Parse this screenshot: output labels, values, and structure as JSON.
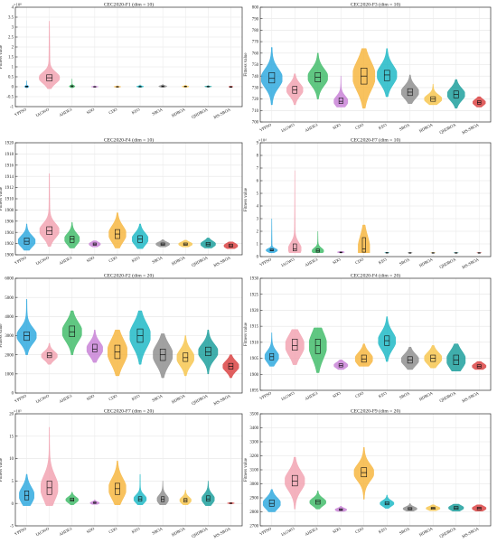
{
  "figure": {
    "ylabel": "Fitness value",
    "algorithms": [
      "YPPSO",
      "IAGWO",
      "AHDE3",
      "SDO",
      "CDO",
      "KEO",
      "SBOA",
      "HDBOA",
      "QHDBOA",
      "MS-SBOA"
    ],
    "colors": [
      "#2aa7de",
      "#f2a1b0",
      "#3dbb67",
      "#c77fd6",
      "#f6b43b",
      "#19b7c4",
      "#8c8c8c",
      "#f6c44a",
      "#169c9a",
      "#d93d3d"
    ]
  },
  "chart_data": [
    {
      "type": "violin",
      "title": "CEC2020-F1 (dim = 10)",
      "exponent_label": "×10⁸",
      "ylim": [
        -1,
        4
      ],
      "yticks": [
        -1,
        -0.5,
        0,
        0.5,
        1,
        1.5,
        2,
        2.5,
        3,
        3.5,
        4
      ],
      "ytick_labels": [
        "-1",
        "-0.5",
        "0",
        "0.5",
        "1",
        "1.5",
        "2",
        "2.5",
        "3",
        "3.5",
        "4"
      ],
      "series": [
        {
          "median": 0.01,
          "q1": -0.01,
          "q3": 0.03,
          "min": -0.05,
          "max": 0.3,
          "width": 0.2
        },
        {
          "median": 0.45,
          "q1": 0.3,
          "q3": 0.6,
          "min": -0.1,
          "max": 3.3,
          "width": 0.9
        },
        {
          "median": 0.02,
          "q1": 0.0,
          "q3": 0.05,
          "min": -0.05,
          "max": 0.4,
          "width": 0.25
        },
        {
          "median": 0.0,
          "q1": -0.01,
          "q3": 0.01,
          "min": -0.03,
          "max": 0.05,
          "width": 0.3
        },
        {
          "median": 0.0,
          "q1": -0.01,
          "q3": 0.01,
          "min": -0.03,
          "max": 0.05,
          "width": 0.3
        },
        {
          "median": 0.01,
          "q1": -0.01,
          "q3": 0.02,
          "min": -0.03,
          "max": 0.1,
          "width": 0.3
        },
        {
          "median": 0.02,
          "q1": 0.0,
          "q3": 0.04,
          "min": -0.03,
          "max": 0.12,
          "width": 0.35
        },
        {
          "median": 0.01,
          "q1": 0.0,
          "q3": 0.03,
          "min": -0.03,
          "max": 0.08,
          "width": 0.3
        },
        {
          "median": 0.01,
          "q1": 0.0,
          "q3": 0.02,
          "min": -0.03,
          "max": 0.06,
          "width": 0.3
        },
        {
          "median": 0.0,
          "q1": 0.0,
          "q3": 0.0,
          "min": 0.0,
          "max": 0.0,
          "width": 0.15
        }
      ]
    },
    {
      "type": "violin",
      "title": "CEC2020-F3 (dim = 10)",
      "exponent_label": "",
      "ylim": [
        700,
        800
      ],
      "yticks": [
        700,
        710,
        720,
        730,
        740,
        750,
        760,
        770,
        780,
        790,
        800
      ],
      "ytick_labels": [
        "700",
        "710",
        "720",
        "730",
        "740",
        "750",
        "760",
        "770",
        "780",
        "790",
        "800"
      ],
      "series": [
        {
          "median": 738,
          "q1": 734,
          "q3": 743,
          "min": 715,
          "max": 765,
          "width": 0.9
        },
        {
          "median": 728,
          "q1": 725,
          "q3": 731,
          "min": 715,
          "max": 742,
          "width": 0.7
        },
        {
          "median": 739,
          "q1": 735,
          "q3": 743,
          "min": 720,
          "max": 760,
          "width": 0.85
        },
        {
          "median": 718,
          "q1": 716,
          "q3": 721,
          "min": 713,
          "max": 740,
          "width": 0.6
        },
        {
          "median": 740,
          "q1": 733,
          "q3": 747,
          "min": 712,
          "max": 764,
          "width": 0.95
        },
        {
          "median": 741,
          "q1": 736,
          "q3": 745,
          "min": 722,
          "max": 764,
          "width": 0.85
        },
        {
          "median": 726,
          "q1": 723,
          "q3": 729,
          "min": 716,
          "max": 741,
          "width": 0.75
        },
        {
          "median": 720,
          "q1": 718,
          "q3": 722,
          "min": 715,
          "max": 733,
          "width": 0.75
        },
        {
          "median": 724,
          "q1": 721,
          "q3": 727,
          "min": 712,
          "max": 737,
          "width": 0.75
        },
        {
          "median": 717,
          "q1": 715.5,
          "q3": 718.5,
          "min": 713,
          "max": 722,
          "width": 0.55
        }
      ]
    },
    {
      "type": "violin",
      "title": "CEC2020-F4 (dim = 10)",
      "exponent_label": "",
      "ylim": [
        1900,
        1920
      ],
      "yticks": [
        1900,
        1902,
        1904,
        1906,
        1908,
        1910,
        1912,
        1914,
        1916,
        1918,
        1920
      ],
      "ytick_labels": [
        "1900",
        "1902",
        "1904",
        "1906",
        "1908",
        "1910",
        "1912",
        "1914",
        "1916",
        "1918",
        "1920"
      ],
      "series": [
        {
          "median": 1902.4,
          "q1": 1901.9,
          "q3": 1903.0,
          "min": 1900.8,
          "max": 1905.5,
          "width": 0.75
        },
        {
          "median": 1904.3,
          "q1": 1903.6,
          "q3": 1905.0,
          "min": 1901.5,
          "max": 1914.5,
          "width": 0.85
        },
        {
          "median": 1902.8,
          "q1": 1902.2,
          "q3": 1903.3,
          "min": 1901.2,
          "max": 1905.8,
          "width": 0.65
        },
        {
          "median": 1901.9,
          "q1": 1901.7,
          "q3": 1902.1,
          "min": 1901.4,
          "max": 1902.5,
          "width": 0.5
        },
        {
          "median": 1903.7,
          "q1": 1902.9,
          "q3": 1904.5,
          "min": 1901.2,
          "max": 1907.5,
          "width": 0.75
        },
        {
          "median": 1902.8,
          "q1": 1902.2,
          "q3": 1903.4,
          "min": 1901.1,
          "max": 1905.5,
          "width": 0.7
        },
        {
          "median": 1901.9,
          "q1": 1901.7,
          "q3": 1902.1,
          "min": 1901.4,
          "max": 1902.7,
          "width": 0.6
        },
        {
          "median": 1901.9,
          "q1": 1901.7,
          "q3": 1902.1,
          "min": 1901.4,
          "max": 1902.6,
          "width": 0.6
        },
        {
          "median": 1901.9,
          "q1": 1901.6,
          "q3": 1902.2,
          "min": 1901.2,
          "max": 1903.0,
          "width": 0.65
        },
        {
          "median": 1901.6,
          "q1": 1901.4,
          "q3": 1901.9,
          "min": 1901.1,
          "max": 1902.3,
          "width": 0.6
        }
      ]
    },
    {
      "type": "violin",
      "title": "CEC2020-F7 (dim = 10)",
      "exponent_label": "×10⁴",
      "ylim": [
        0,
        9
      ],
      "yticks": [
        0,
        1,
        2,
        3,
        4,
        5,
        6,
        7,
        8,
        9
      ],
      "ytick_labels": [
        "0",
        "1",
        "2",
        "3",
        "4",
        "5",
        "6",
        "7",
        "8",
        "9"
      ],
      "series": [
        {
          "median": 0.5,
          "q1": 0.45,
          "q3": 0.6,
          "min": 0.3,
          "max": 3.0,
          "width": 0.5
        },
        {
          "median": 0.6,
          "q1": 0.45,
          "q3": 1.0,
          "min": 0.3,
          "max": 6.8,
          "width": 0.55
        },
        {
          "median": 0.45,
          "q1": 0.35,
          "q3": 0.6,
          "min": 0.3,
          "max": 2.0,
          "width": 0.5
        },
        {
          "median": 0.35,
          "q1": 0.3,
          "q3": 0.35,
          "min": 0.3,
          "max": 0.4,
          "width": 0.3
        },
        {
          "median": 0.6,
          "q1": 0.35,
          "q3": 1.5,
          "min": 0.3,
          "max": 2.5,
          "width": 0.5
        },
        {
          "median": 0.3,
          "q1": 0.3,
          "q3": 0.32,
          "min": 0.3,
          "max": 0.35,
          "width": 0.2
        },
        {
          "median": 0.3,
          "q1": 0.3,
          "q3": 0.31,
          "min": 0.3,
          "max": 0.32,
          "width": 0.2
        },
        {
          "median": 0.3,
          "q1": 0.3,
          "q3": 0.31,
          "min": 0.3,
          "max": 0.32,
          "width": 0.2
        },
        {
          "median": 0.3,
          "q1": 0.3,
          "q3": 0.31,
          "min": 0.3,
          "max": 0.32,
          "width": 0.2
        },
        {
          "median": 0.3,
          "q1": 0.3,
          "q3": 0.31,
          "min": 0.3,
          "max": 0.32,
          "width": 0.2
        }
      ]
    },
    {
      "type": "violin",
      "title": "CEC2020-F2 (dim = 20)",
      "exponent_label": "",
      "ylim": [
        0,
        6000
      ],
      "yticks": [
        0,
        1000,
        2000,
        3000,
        4000,
        5000,
        6000
      ],
      "ytick_labels": [
        "0",
        "1000",
        "2000",
        "3000",
        "4000",
        "5000",
        "6000"
      ],
      "series": [
        {
          "median": 3000,
          "q1": 2750,
          "q3": 3200,
          "min": 2000,
          "max": 4900,
          "width": 0.85
        },
        {
          "median": 1950,
          "q1": 1850,
          "q3": 2100,
          "min": 1500,
          "max": 2600,
          "width": 0.7
        },
        {
          "median": 3200,
          "q1": 2950,
          "q3": 3500,
          "min": 2000,
          "max": 4300,
          "width": 0.85
        },
        {
          "median": 2300,
          "q1": 2150,
          "q3": 2550,
          "min": 1600,
          "max": 3300,
          "width": 0.7
        },
        {
          "median": 2150,
          "q1": 1800,
          "q3": 2500,
          "min": 900,
          "max": 3300,
          "width": 0.85
        },
        {
          "median": 3000,
          "q1": 2650,
          "q3": 3350,
          "min": 1500,
          "max": 4300,
          "width": 0.9
        },
        {
          "median": 2000,
          "q1": 1700,
          "q3": 2300,
          "min": 800,
          "max": 3100,
          "width": 0.85
        },
        {
          "median": 1850,
          "q1": 1650,
          "q3": 2100,
          "min": 900,
          "max": 3000,
          "width": 0.75
        },
        {
          "median": 2150,
          "q1": 1950,
          "q3": 2400,
          "min": 1000,
          "max": 3300,
          "width": 0.85
        },
        {
          "median": 1400,
          "q1": 1250,
          "q3": 1550,
          "min": 800,
          "max": 2000,
          "width": 0.7
        }
      ]
    },
    {
      "type": "violin",
      "title": "CEC2020-F4 (dim = 20)",
      "exponent_label": "",
      "ylim": [
        1895,
        1930
      ],
      "yticks": [
        1895,
        1900,
        1905,
        1910,
        1915,
        1920,
        1925,
        1930
      ],
      "ytick_labels": [
        "1895",
        "1900",
        "1905",
        "1910",
        "1915",
        "1920",
        "1925",
        "1930"
      ],
      "series": [
        {
          "median": 1905.5,
          "q1": 1904.5,
          "q3": 1906.5,
          "min": 1902.5,
          "max": 1913.0,
          "width": 0.6
        },
        {
          "median": 1909.0,
          "q1": 1907.5,
          "q3": 1911.0,
          "min": 1903.0,
          "max": 1914.0,
          "width": 0.8
        },
        {
          "median": 1909.0,
          "q1": 1906.5,
          "q3": 1911.0,
          "min": 1900.5,
          "max": 1914.5,
          "width": 0.75
        },
        {
          "median": 1902.8,
          "q1": 1902.3,
          "q3": 1903.3,
          "min": 1901.5,
          "max": 1904.5,
          "width": 0.6
        },
        {
          "median": 1904.8,
          "q1": 1903.8,
          "q3": 1906.0,
          "min": 1902.5,
          "max": 1909.5,
          "width": 0.75
        },
        {
          "median": 1910.5,
          "q1": 1909.0,
          "q3": 1912.0,
          "min": 1904.0,
          "max": 1918.0,
          "width": 0.75
        },
        {
          "median": 1904.5,
          "q1": 1903.5,
          "q3": 1905.5,
          "min": 1901.5,
          "max": 1908.5,
          "width": 0.75
        },
        {
          "median": 1905.0,
          "q1": 1904.0,
          "q3": 1906.0,
          "min": 1902.0,
          "max": 1909.0,
          "width": 0.75
        },
        {
          "median": 1904.5,
          "q1": 1903.0,
          "q3": 1906.0,
          "min": 1901.0,
          "max": 1909.5,
          "width": 0.8
        },
        {
          "median": 1902.5,
          "q1": 1902.0,
          "q3": 1903.0,
          "min": 1901.5,
          "max": 1904.0,
          "width": 0.6
        }
      ]
    },
    {
      "type": "violin",
      "title": "CEC2020-F7 (dim = 20)",
      "exponent_label": "×10⁵",
      "ylim": [
        -5,
        20
      ],
      "yticks": [
        -5,
        0,
        5,
        10,
        15,
        20
      ],
      "ytick_labels": [
        "-5",
        "0",
        "5",
        "10",
        "15",
        "20"
      ],
      "series": [
        {
          "median": 1.8,
          "q1": 0.8,
          "q3": 2.8,
          "min": -0.5,
          "max": 6.5,
          "width": 0.65
        },
        {
          "median": 3.5,
          "q1": 2.0,
          "q3": 5.0,
          "min": -0.5,
          "max": 17.0,
          "width": 0.75
        },
        {
          "median": 0.8,
          "q1": 0.5,
          "q3": 1.2,
          "min": -0.3,
          "max": 2.5,
          "width": 0.55
        },
        {
          "median": 0.1,
          "q1": 0.0,
          "q3": 0.3,
          "min": -0.2,
          "max": 0.8,
          "width": 0.4
        },
        {
          "median": 3.3,
          "q1": 2.0,
          "q3": 4.5,
          "min": -0.3,
          "max": 9.5,
          "width": 0.75
        },
        {
          "median": 1.0,
          "q1": 0.5,
          "q3": 1.5,
          "min": -0.3,
          "max": 6.5,
          "width": 0.55
        },
        {
          "median": 0.9,
          "q1": 0.4,
          "q3": 1.5,
          "min": -0.3,
          "max": 5.0,
          "width": 0.5
        },
        {
          "median": 0.7,
          "q1": 0.3,
          "q3": 1.1,
          "min": -0.3,
          "max": 3.0,
          "width": 0.5
        },
        {
          "median": 1.0,
          "q1": 0.5,
          "q3": 1.7,
          "min": -0.5,
          "max": 5.0,
          "width": 0.55
        },
        {
          "median": 0.05,
          "q1": 0.0,
          "q3": 0.1,
          "min": -0.1,
          "max": 0.2,
          "width": 0.3
        }
      ]
    },
    {
      "type": "violin",
      "title": "CEC2020-F9 (dim = 20)",
      "exponent_label": "",
      "ylim": [
        2700,
        3500
      ],
      "yticks": [
        2700,
        2800,
        2900,
        3000,
        3100,
        3200,
        3300,
        3400,
        3500
      ],
      "ytick_labels": [
        "2700",
        "2800",
        "2900",
        "3000",
        "3100",
        "3200",
        "3300",
        "3400",
        "3500"
      ],
      "series": [
        {
          "median": 2860,
          "q1": 2840,
          "q3": 2885,
          "min": 2800,
          "max": 2960,
          "width": 0.75
        },
        {
          "median": 3020,
          "q1": 2985,
          "q3": 3060,
          "min": 2820,
          "max": 3190,
          "width": 0.85
        },
        {
          "median": 2870,
          "q1": 2855,
          "q3": 2885,
          "min": 2820,
          "max": 2950,
          "width": 0.7
        },
        {
          "median": 2815,
          "q1": 2810,
          "q3": 2822,
          "min": 2803,
          "max": 2840,
          "width": 0.5
        },
        {
          "median": 3080,
          "q1": 3050,
          "q3": 3115,
          "min": 2890,
          "max": 3260,
          "width": 0.85
        },
        {
          "median": 2860,
          "q1": 2850,
          "q3": 2872,
          "min": 2825,
          "max": 2920,
          "width": 0.6
        },
        {
          "median": 2822,
          "q1": 2815,
          "q3": 2830,
          "min": 2805,
          "max": 2860,
          "width": 0.6
        },
        {
          "median": 2825,
          "q1": 2818,
          "q3": 2832,
          "min": 2808,
          "max": 2850,
          "width": 0.6
        },
        {
          "median": 2828,
          "q1": 2818,
          "q3": 2838,
          "min": 2805,
          "max": 2855,
          "width": 0.65
        },
        {
          "median": 2825,
          "q1": 2815,
          "q3": 2833,
          "min": 2805,
          "max": 2850,
          "width": 0.6
        }
      ]
    }
  ]
}
